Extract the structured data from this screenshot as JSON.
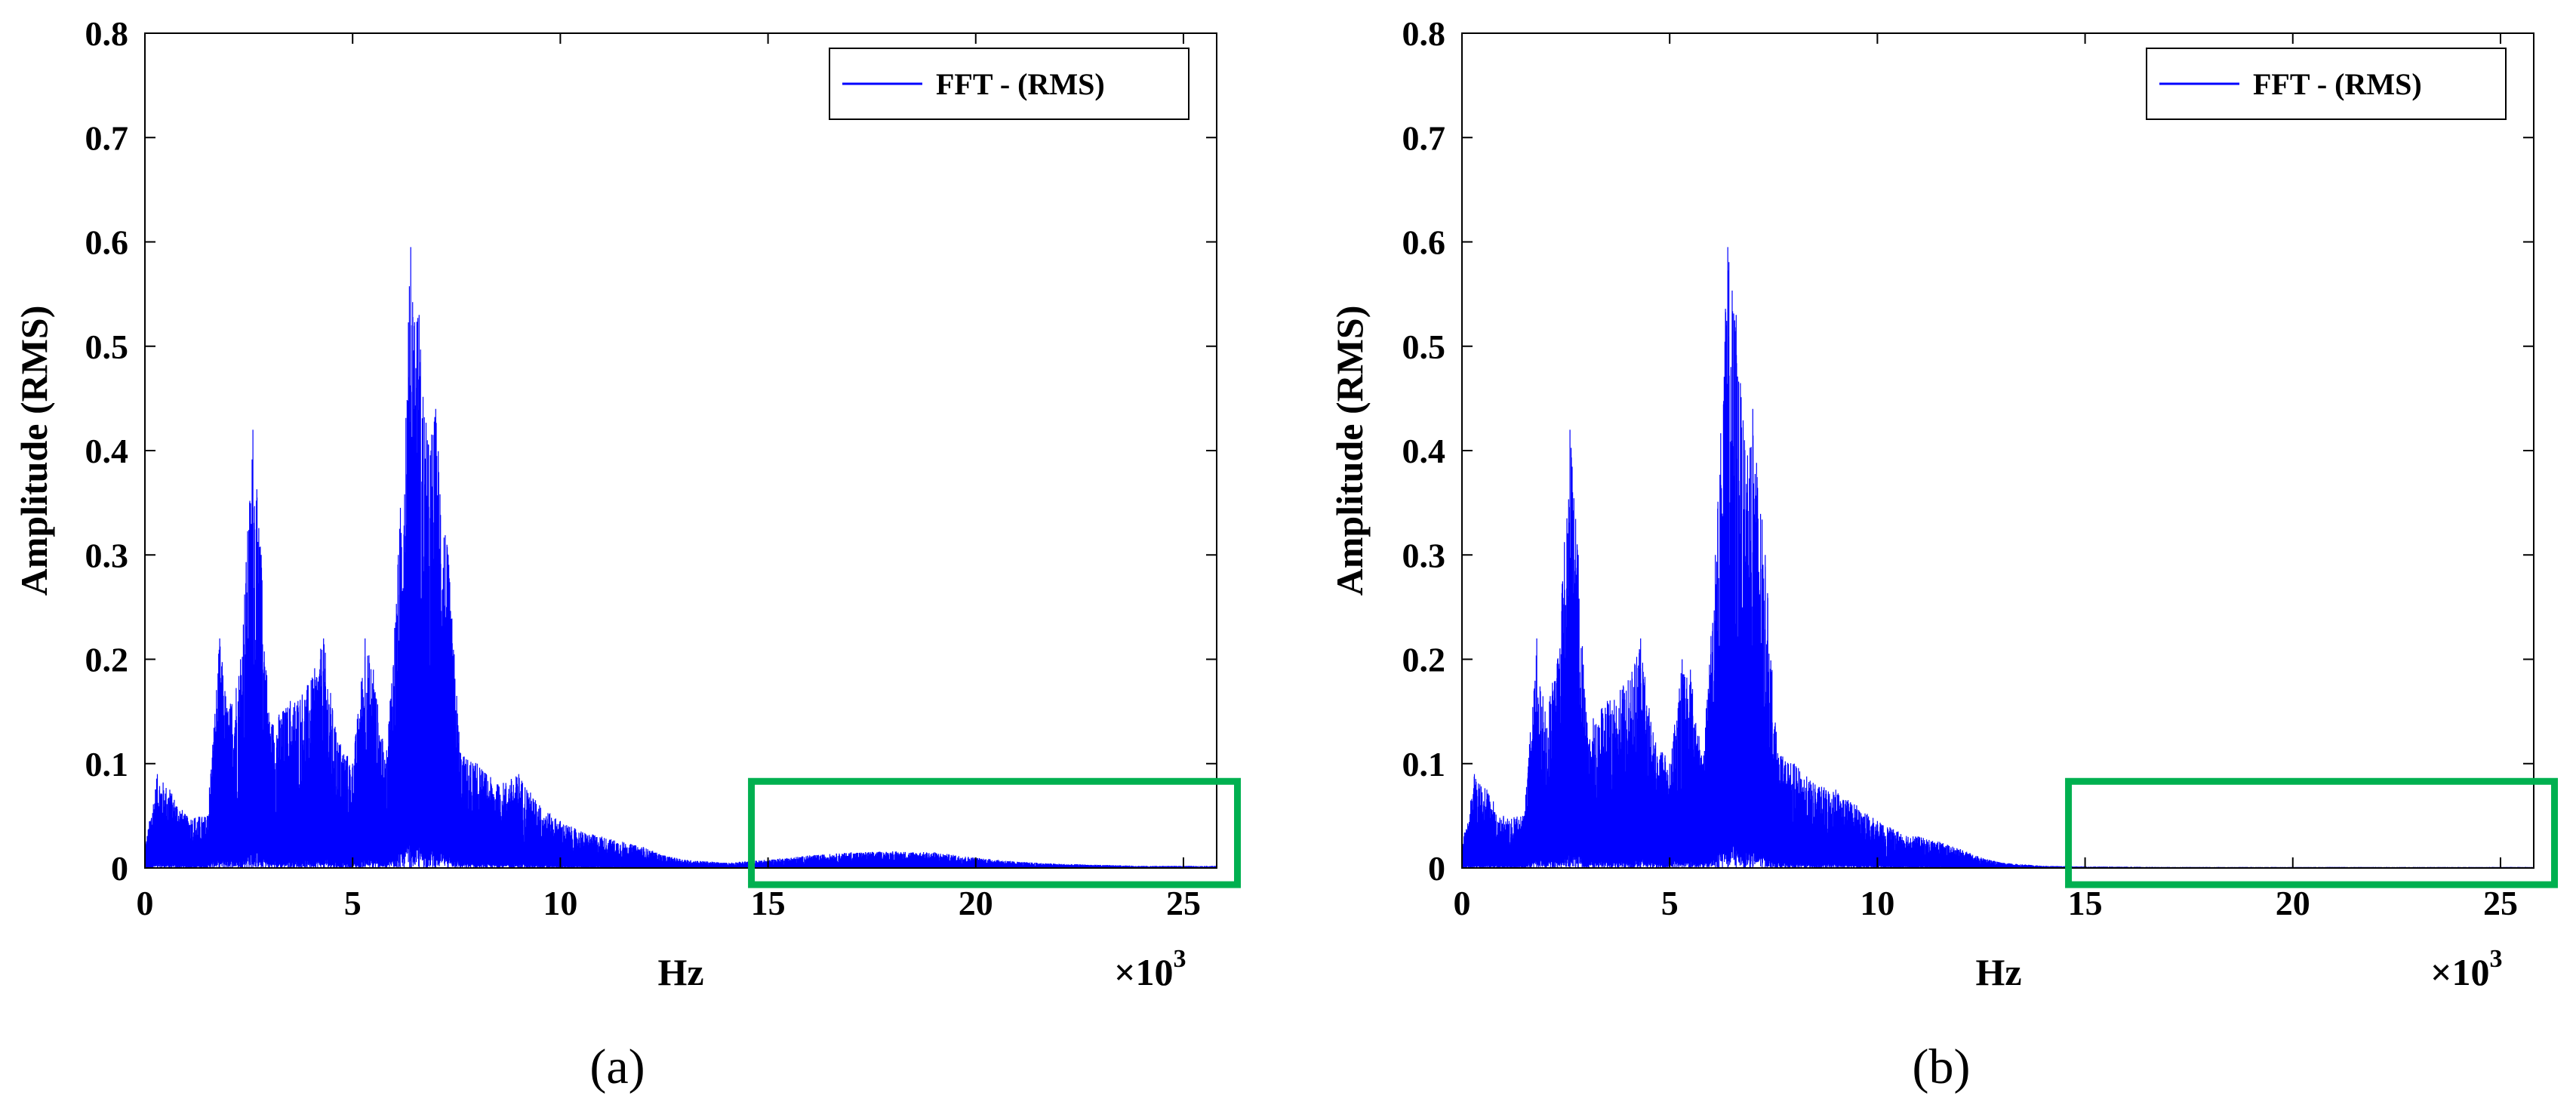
{
  "colors": {
    "series": "#0000ff",
    "highlight": "#00b050",
    "axes": "#000000",
    "background": "#ffffff"
  },
  "chart_data": [
    {
      "type": "line",
      "panel": "a",
      "caption": "(a)",
      "xlabel": "Hz",
      "ylabel": "Amplitude (RMS)",
      "x_multiplier": "×10",
      "x_multiplier_exp": "3",
      "xlim": [
        0,
        25.8
      ],
      "ylim": [
        0,
        0.8
      ],
      "xticks": [
        0,
        5,
        10,
        15,
        20,
        25
      ],
      "yticks": [
        0,
        0.1,
        0.2,
        0.3,
        0.4,
        0.5,
        0.6,
        0.7,
        0.8
      ],
      "xtick_labels": [
        "0",
        "5",
        "10",
        "15",
        "20",
        "25"
      ],
      "ytick_labels": [
        "0",
        "0.1",
        "0.2",
        "0.3",
        "0.4",
        "0.5",
        "0.6",
        "0.7",
        "0.8"
      ],
      "legend": [
        "FFT - (RMS)"
      ],
      "legend_position": "top-right",
      "grid": false,
      "highlight_region": {
        "x_start": 14.6,
        "x_end": 26.3,
        "y_start": -0.016,
        "y_end": 0.083
      },
      "series": [
        {
          "name": "FFT - (RMS)",
          "x_kHz": [
            0,
            0.3,
            0.6,
            1.0,
            1.5,
            1.8,
            2.0,
            2.3,
            2.6,
            2.8,
            3.0,
            3.5,
            4.0,
            4.3,
            4.6,
            5.0,
            5.3,
            5.5,
            5.8,
            6.1,
            6.4,
            6.6,
            6.8,
            7.0,
            7.3,
            7.6,
            8.0,
            8.5,
            9.0,
            9.5,
            10.0,
            10.5,
            11.0,
            11.5,
            12.0,
            12.5,
            13.0,
            14.0,
            15.0,
            16.0,
            17.0,
            18.0,
            19.0,
            20.0,
            21.0,
            22.0,
            23.0,
            24.0,
            25.0,
            25.8
          ],
          "envelope_amplitude": [
            0.02,
            0.09,
            0.075,
            0.05,
            0.05,
            0.22,
            0.15,
            0.2,
            0.42,
            0.3,
            0.14,
            0.16,
            0.18,
            0.22,
            0.13,
            0.1,
            0.22,
            0.19,
            0.1,
            0.3,
            0.595,
            0.53,
            0.41,
            0.44,
            0.3,
            0.11,
            0.1,
            0.08,
            0.09,
            0.06,
            0.045,
            0.035,
            0.03,
            0.025,
            0.02,
            0.012,
            0.008,
            0.005,
            0.008,
            0.012,
            0.015,
            0.016,
            0.015,
            0.01,
            0.006,
            0.004,
            0.003,
            0.002,
            0.002,
            0.002
          ]
        }
      ]
    },
    {
      "type": "line",
      "panel": "b",
      "caption": "(b)",
      "xlabel": "Hz",
      "ylabel": "Amplitude (RMS)",
      "x_multiplier": "×10",
      "x_multiplier_exp": "3",
      "xlim": [
        0,
        25.8
      ],
      "ylim": [
        0,
        0.8
      ],
      "xticks": [
        0,
        5,
        10,
        15,
        20,
        25
      ],
      "yticks": [
        0,
        0.1,
        0.2,
        0.3,
        0.4,
        0.5,
        0.6,
        0.7,
        0.8
      ],
      "xtick_labels": [
        "0",
        "5",
        "10",
        "15",
        "20",
        "25"
      ],
      "ytick_labels": [
        "0",
        "0.1",
        "0.2",
        "0.3",
        "0.4",
        "0.5",
        "0.6",
        "0.7",
        "0.8"
      ],
      "legend": [
        "FFT - (RMS)"
      ],
      "legend_position": "top-right",
      "grid": false,
      "highlight_region": {
        "x_start": 14.6,
        "x_end": 26.3,
        "y_start": -0.016,
        "y_end": 0.083
      },
      "series": [
        {
          "name": "FFT - (RMS)",
          "x_kHz": [
            0,
            0.3,
            0.6,
            1.0,
            1.5,
            1.8,
            2.0,
            2.3,
            2.6,
            2.8,
            3.0,
            3.5,
            4.0,
            4.3,
            4.6,
            5.0,
            5.3,
            5.5,
            5.8,
            6.1,
            6.4,
            6.6,
            6.8,
            7.0,
            7.3,
            7.6,
            8.0,
            8.5,
            9.0,
            9.5,
            10.0,
            10.5,
            11.0,
            11.5,
            12.0,
            12.5,
            13.0,
            14.0,
            15.0,
            16.0,
            17.0,
            18.0,
            19.0,
            20.0,
            21.0,
            22.0,
            23.0,
            24.0,
            25.0,
            25.8
          ],
          "envelope_amplitude": [
            0.02,
            0.09,
            0.075,
            0.05,
            0.05,
            0.22,
            0.15,
            0.2,
            0.42,
            0.3,
            0.14,
            0.16,
            0.18,
            0.22,
            0.13,
            0.1,
            0.2,
            0.19,
            0.1,
            0.3,
            0.595,
            0.53,
            0.41,
            0.44,
            0.3,
            0.11,
            0.1,
            0.08,
            0.075,
            0.06,
            0.045,
            0.035,
            0.03,
            0.025,
            0.018,
            0.01,
            0.005,
            0.002,
            0.0015,
            0.0012,
            0.001,
            0.001,
            0.001,
            0.001,
            0.001,
            0.001,
            0.001,
            0.001,
            0.001,
            0.001
          ]
        }
      ]
    }
  ]
}
